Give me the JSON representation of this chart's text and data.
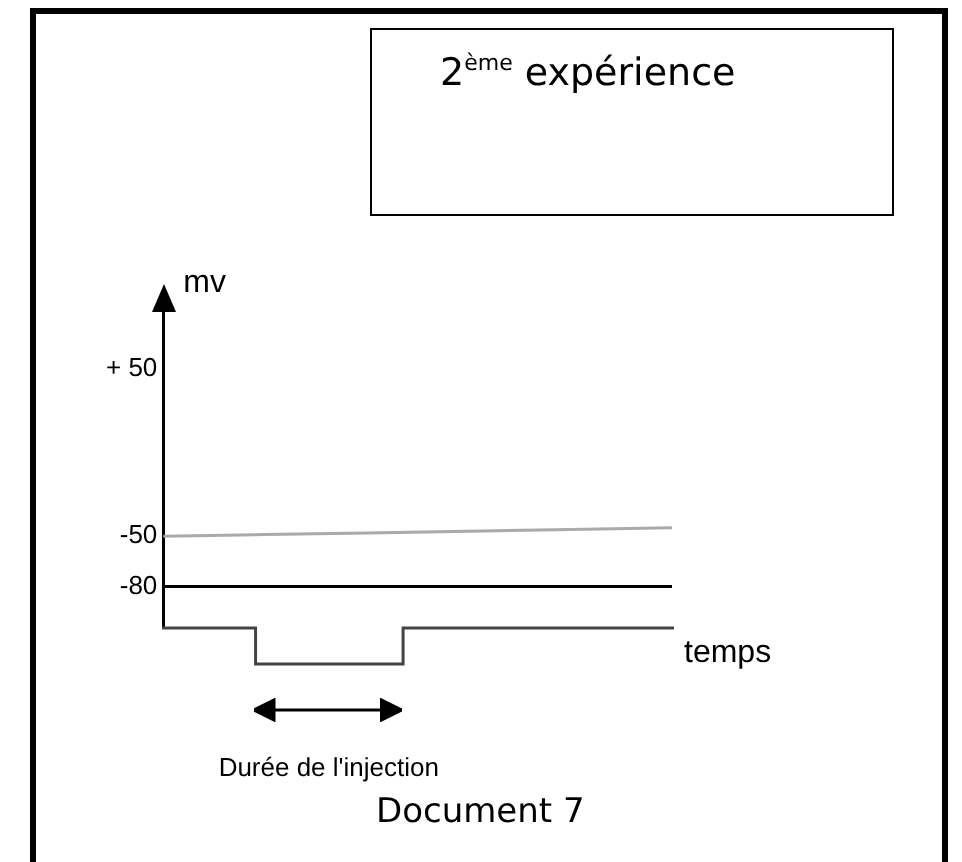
{
  "chart_data": {
    "type": "line",
    "title": "2$^{ème}$ expérience",
    "xlabel": "temps",
    "ylabel": "mv",
    "categories": [
      null,
      null,
      null,
      null,
      null,
      null
    ],
    "series": [
      {
        "color": "#aaaaaa",
        "values": [
          -50,
          -49,
          -48,
          -47,
          -46,
          -45
        ]
      },
      {
        "color": "#000000",
        "values": [
          -80,
          -80,
          -80,
          -80,
          -80,
          -80
        ]
      }
    ],
    "ylim": [
      -105,
      85
    ],
    "yticks": [
      {
        "value": 50,
        "label": "+ 50"
      },
      -50,
      -80
    ],
    "grid": false,
    "legend": false,
    "marker": "none",
    "line_style": "solid",
    "tick_labels": "y",
    "annotations": [
      "Durée de l'injection",
      "Document 7"
    ]
  }
}
